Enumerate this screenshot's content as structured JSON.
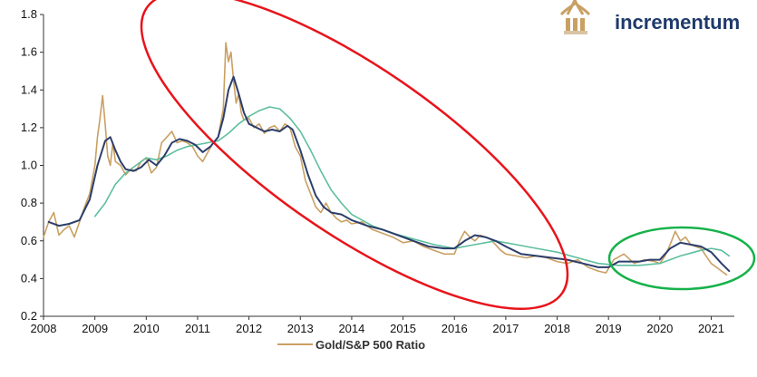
{
  "brand": {
    "name": "incrementum",
    "color": "#1f3a6b",
    "logo_color": "#c9a063"
  },
  "chart_data": {
    "type": "line",
    "title": "",
    "xlabel": "",
    "ylabel": "",
    "xlim": [
      2008.0,
      2021.45
    ],
    "ylim": [
      0.2,
      1.8
    ],
    "x_ticks": [
      2008,
      2009,
      2010,
      2011,
      2012,
      2013,
      2014,
      2015,
      2016,
      2017,
      2018,
      2019,
      2020,
      2021
    ],
    "y_ticks": [
      0.2,
      0.4,
      0.6,
      0.8,
      1.0,
      1.2,
      1.4,
      1.6,
      1.8
    ],
    "y_tick_labels": [
      "0.2",
      "0.4",
      "0.6",
      "0.8",
      "1.0",
      "1.2",
      "1.4",
      "1.6",
      "1.8"
    ],
    "legend": {
      "placement": "bottom",
      "entries": [
        "Gold/S&P 500 Ratio"
      ]
    },
    "series": [
      {
        "name": "Gold/S&P 500 Ratio",
        "color": "#c9a063",
        "x": [
          2008.0,
          2008.1,
          2008.2,
          2008.3,
          2008.4,
          2008.5,
          2008.6,
          2008.7,
          2008.8,
          2008.9,
          2009.0,
          2009.05,
          2009.1,
          2009.15,
          2009.2,
          2009.25,
          2009.3,
          2009.35,
          2009.4,
          2009.5,
          2009.6,
          2009.7,
          2009.8,
          2009.9,
          2010.0,
          2010.1,
          2010.2,
          2010.3,
          2010.4,
          2010.5,
          2010.6,
          2010.7,
          2010.8,
          2010.9,
          2011.0,
          2011.1,
          2011.2,
          2011.3,
          2011.4,
          2011.5,
          2011.55,
          2011.6,
          2011.65,
          2011.7,
          2011.75,
          2011.8,
          2011.85,
          2011.9,
          2012.0,
          2012.1,
          2012.2,
          2012.3,
          2012.4,
          2012.5,
          2012.6,
          2012.7,
          2012.8,
          2012.9,
          2013.0,
          2013.1,
          2013.2,
          2013.3,
          2013.4,
          2013.5,
          2013.6,
          2013.7,
          2013.8,
          2013.9,
          2014.0,
          2014.2,
          2014.4,
          2014.6,
          2014.8,
          2015.0,
          2015.2,
          2015.4,
          2015.6,
          2015.8,
          2016.0,
          2016.1,
          2016.2,
          2016.3,
          2016.4,
          2016.5,
          2016.6,
          2016.7,
          2016.8,
          2016.9,
          2017.0,
          2017.2,
          2017.4,
          2017.6,
          2017.8,
          2018.0,
          2018.2,
          2018.4,
          2018.6,
          2018.8,
          2018.95,
          2019.1,
          2019.3,
          2019.5,
          2019.7,
          2019.9,
          2020.0,
          2020.1,
          2020.2,
          2020.3,
          2020.4,
          2020.5,
          2020.6,
          2020.7,
          2020.8,
          2020.9,
          2021.0,
          2021.1,
          2021.2,
          2021.3
        ],
        "y": [
          0.62,
          0.7,
          0.75,
          0.63,
          0.66,
          0.68,
          0.62,
          0.7,
          0.78,
          0.85,
          1.0,
          1.15,
          1.25,
          1.37,
          1.22,
          1.05,
          1.0,
          1.12,
          1.02,
          1.0,
          0.95,
          0.98,
          0.97,
          1.02,
          1.04,
          0.96,
          0.99,
          1.12,
          1.15,
          1.18,
          1.12,
          1.13,
          1.12,
          1.1,
          1.05,
          1.02,
          1.07,
          1.12,
          1.15,
          1.3,
          1.65,
          1.55,
          1.6,
          1.45,
          1.33,
          1.38,
          1.28,
          1.24,
          1.25,
          1.2,
          1.22,
          1.17,
          1.2,
          1.21,
          1.18,
          1.22,
          1.2,
          1.1,
          1.05,
          0.92,
          0.85,
          0.78,
          0.75,
          0.8,
          0.75,
          0.72,
          0.7,
          0.71,
          0.69,
          0.7,
          0.66,
          0.64,
          0.62,
          0.59,
          0.6,
          0.57,
          0.55,
          0.53,
          0.53,
          0.6,
          0.65,
          0.62,
          0.6,
          0.63,
          0.62,
          0.61,
          0.58,
          0.55,
          0.53,
          0.52,
          0.51,
          0.52,
          0.51,
          0.49,
          0.48,
          0.5,
          0.46,
          0.44,
          0.43,
          0.5,
          0.53,
          0.48,
          0.5,
          0.49,
          0.48,
          0.52,
          0.58,
          0.65,
          0.6,
          0.62,
          0.58,
          0.57,
          0.56,
          0.52,
          0.48,
          0.46,
          0.44,
          0.42
        ]
      },
      {
        "color": "#2c3e6b",
        "x": [
          2008.1,
          2008.3,
          2008.5,
          2008.7,
          2008.9,
          2009.05,
          2009.2,
          2009.3,
          2009.4,
          2009.5,
          2009.6,
          2009.75,
          2009.9,
          2010.05,
          2010.2,
          2010.35,
          2010.5,
          2010.65,
          2010.8,
          2010.95,
          2011.1,
          2011.25,
          2011.4,
          2011.5,
          2011.6,
          2011.7,
          2011.8,
          2011.9,
          2012.0,
          2012.15,
          2012.3,
          2012.45,
          2012.6,
          2012.75,
          2012.85,
          2013.0,
          2013.15,
          2013.3,
          2013.45,
          2013.6,
          2013.8,
          2014.0,
          2014.3,
          2014.6,
          2014.9,
          2015.2,
          2015.5,
          2015.8,
          2016.0,
          2016.2,
          2016.4,
          2016.6,
          2016.8,
          2017.0,
          2017.3,
          2017.6,
          2017.9,
          2018.2,
          2018.5,
          2018.8,
          2019.0,
          2019.2,
          2019.4,
          2019.6,
          2019.8,
          2020.0,
          2020.2,
          2020.4,
          2020.6,
          2020.8,
          2021.0,
          2021.2,
          2021.35
        ],
        "y": [
          0.7,
          0.68,
          0.69,
          0.71,
          0.82,
          1.0,
          1.13,
          1.15,
          1.08,
          1.02,
          0.98,
          0.97,
          0.99,
          1.03,
          1.0,
          1.05,
          1.12,
          1.14,
          1.13,
          1.11,
          1.07,
          1.1,
          1.15,
          1.25,
          1.4,
          1.47,
          1.38,
          1.28,
          1.22,
          1.2,
          1.18,
          1.19,
          1.18,
          1.21,
          1.19,
          1.08,
          0.95,
          0.84,
          0.78,
          0.75,
          0.74,
          0.71,
          0.68,
          0.66,
          0.63,
          0.6,
          0.57,
          0.56,
          0.56,
          0.6,
          0.63,
          0.62,
          0.6,
          0.57,
          0.53,
          0.52,
          0.51,
          0.5,
          0.48,
          0.46,
          0.46,
          0.49,
          0.49,
          0.49,
          0.5,
          0.5,
          0.56,
          0.59,
          0.58,
          0.57,
          0.54,
          0.48,
          0.44
        ]
      },
      {
        "color": "#5dbf9d",
        "x": [
          2009.0,
          2009.2,
          2009.4,
          2009.6,
          2009.8,
          2010.0,
          2010.2,
          2010.4,
          2010.6,
          2010.8,
          2011.0,
          2011.2,
          2011.4,
          2011.6,
          2011.8,
          2012.0,
          2012.2,
          2012.4,
          2012.6,
          2012.8,
          2013.0,
          2013.2,
          2013.4,
          2013.6,
          2013.8,
          2014.0,
          2014.4,
          2014.8,
          2015.2,
          2015.6,
          2016.0,
          2016.4,
          2016.8,
          2017.2,
          2017.6,
          2018.0,
          2018.4,
          2018.8,
          2019.2,
          2019.6,
          2020.0,
          2020.4,
          2020.8,
          2021.0,
          2021.2,
          2021.35
        ],
        "y": [
          0.73,
          0.8,
          0.9,
          0.96,
          1.0,
          1.04,
          1.03,
          1.05,
          1.08,
          1.1,
          1.11,
          1.12,
          1.13,
          1.17,
          1.22,
          1.26,
          1.29,
          1.31,
          1.3,
          1.25,
          1.18,
          1.08,
          0.97,
          0.87,
          0.8,
          0.74,
          0.68,
          0.64,
          0.61,
          0.58,
          0.56,
          0.58,
          0.6,
          0.58,
          0.56,
          0.54,
          0.51,
          0.48,
          0.47,
          0.47,
          0.48,
          0.52,
          0.55,
          0.56,
          0.55,
          0.52
        ]
      }
    ],
    "annotations": [
      {
        "shape": "ellipse",
        "color": "#e8141b"
      },
      {
        "shape": "ellipse",
        "color": "#16b24a"
      }
    ]
  }
}
